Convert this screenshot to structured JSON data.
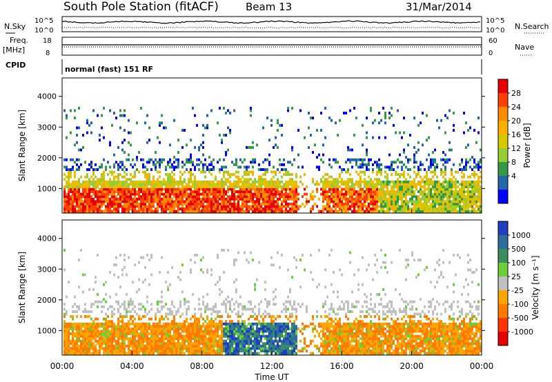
{
  "header": {
    "title": "South Pole Station (fitACF)",
    "beam": "Beam 13",
    "date": "31/Mar/2014"
  },
  "top_panels": {
    "nsky_label": "N.Sky",
    "nsearch_label": "N.Search",
    "noise_ticks": [
      "10^5",
      "10^0"
    ],
    "freq_label": "Freq.",
    "freq_unit": "[MHz]",
    "freq_ticks": [
      "18",
      "8"
    ],
    "nave_label": "Nave",
    "nave_ticks": [
      "60",
      "0"
    ],
    "cpid_label": "CPID",
    "cpid_text": "normal (fast) 151 RF"
  },
  "chart_data": [
    {
      "type": "heatmap",
      "name": "power",
      "xlabel": "Time UT",
      "ylabel": "Slant Range [km]",
      "x_ticks": [
        "00:00",
        "04:00",
        "08:00",
        "12:00",
        "16:00",
        "20:00",
        "00:00"
      ],
      "y_ticks": [
        "1000",
        "2000",
        "3000",
        "4000"
      ],
      "ylim": [
        200,
        4600
      ],
      "colorbar": {
        "label": "Power [dB]",
        "ticks": [
          "28",
          "24",
          "20",
          "16",
          "12",
          "8",
          "4"
        ],
        "colors": [
          "#e60000",
          "#ff4000",
          "#ff8c00",
          "#ffb000",
          "#d8c800",
          "#99cc33",
          "#339944",
          "#2266aa",
          "#0000ff"
        ]
      }
    },
    {
      "type": "heatmap",
      "name": "velocity",
      "xlabel": "Time UT",
      "ylabel": "Slant Range [km]",
      "x_ticks": [
        "00:00",
        "04:00",
        "08:00",
        "12:00",
        "16:00",
        "20:00",
        "00:00"
      ],
      "y_ticks": [
        "1000",
        "2000",
        "3000",
        "4000"
      ],
      "ylim": [
        200,
        4600
      ],
      "colorbar": {
        "label": "Velocity [m s⁻¹]",
        "ticks": [
          "1000",
          "500",
          "100",
          "25",
          "-25",
          "-100",
          "-500",
          "-1000"
        ],
        "colors": [
          "#1e3fbf",
          "#2e6e9e",
          "#3a8f60",
          "#6bcf3a",
          "#c0c0c0",
          "#ffa500",
          "#ff7a00",
          "#ff3300",
          "#e60000"
        ]
      }
    }
  ]
}
